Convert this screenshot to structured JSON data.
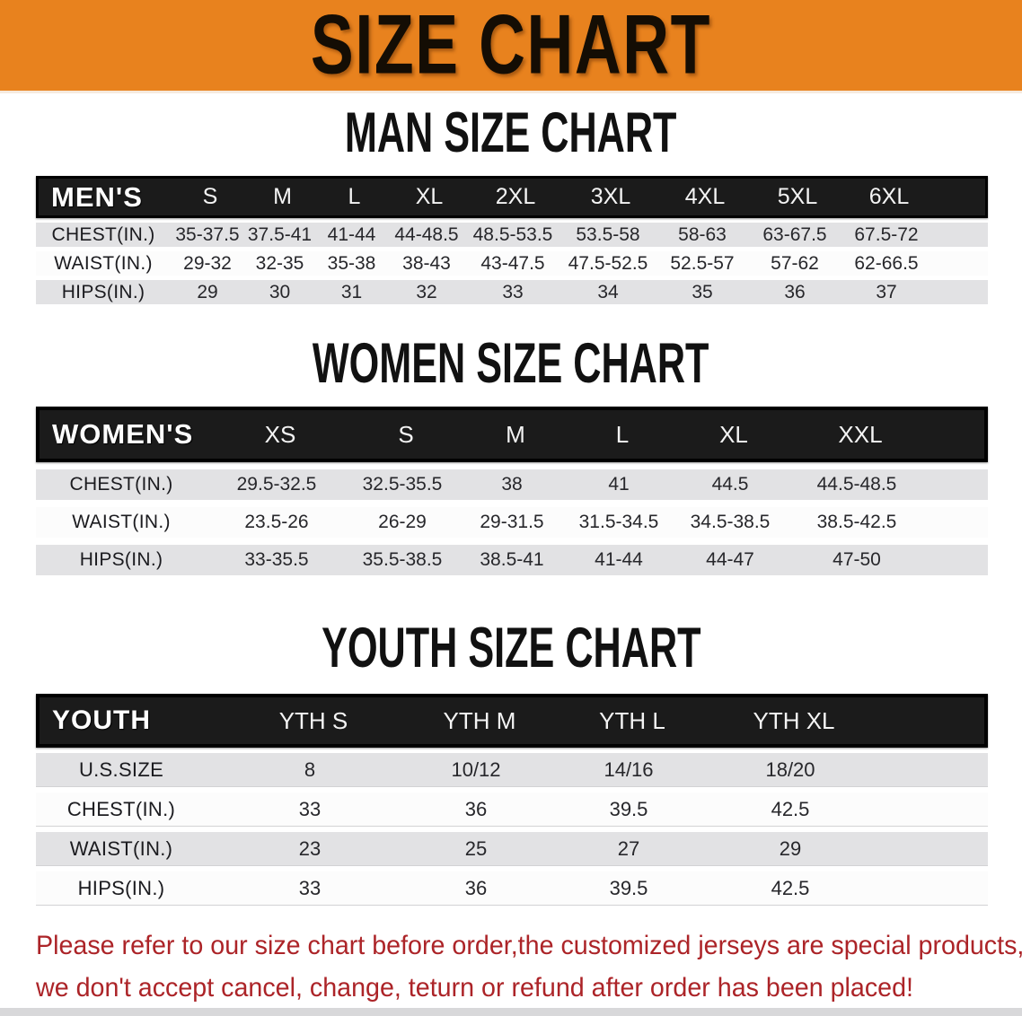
{
  "banner": {
    "title": "SIZE CHART",
    "bg_color": "#E8821E"
  },
  "theme": {
    "table_header_bg": "#1B1B1B",
    "row_shaded_color": "#E2E2E4",
    "row_plain_color": "#FCFCFC",
    "disclaimer_color": "#AC2428"
  },
  "tables": [
    {
      "title": "MAN SIZE CHART",
      "header_label": "MEN'S",
      "columns": [
        "S",
        "M",
        "L",
        "XL",
        "2XL",
        "3XL",
        "4XL",
        "5XL",
        "6XL"
      ],
      "rows": [
        {
          "label": "CHEST(IN.)",
          "values": [
            "35-37.5",
            "37.5-41",
            "41-44",
            "44-48.5",
            "48.5-53.5",
            "53.5-58",
            "58-63",
            "63-67.5",
            "67.5-72"
          ]
        },
        {
          "label": "WAIST(IN.)",
          "values": [
            "29-32",
            "32-35",
            "35-38",
            "38-43",
            "43-47.5",
            "47.5-52.5",
            "52.5-57",
            "57-62",
            "62-66.5"
          ]
        },
        {
          "label": "HIPS(IN.)",
          "values": [
            "29",
            "30",
            "31",
            "32",
            "33",
            "34",
            "35",
            "36",
            "37"
          ]
        }
      ]
    },
    {
      "title": "WOMEN SIZE CHART",
      "header_label": "WOMEN'S",
      "columns": [
        "XS",
        "S",
        "M",
        "L",
        "XL",
        "XXL"
      ],
      "rows": [
        {
          "label": "CHEST(IN.)",
          "values": [
            "29.5-32.5",
            "32.5-35.5",
            "38",
            "41",
            "44.5",
            "44.5-48.5"
          ]
        },
        {
          "label": "WAIST(IN.)",
          "values": [
            "23.5-26",
            "26-29",
            "29-31.5",
            "31.5-34.5",
            "34.5-38.5",
            "38.5-42.5"
          ]
        },
        {
          "label": "HIPS(IN.)",
          "values": [
            "33-35.5",
            "35.5-38.5",
            "38.5-41",
            "41-44",
            "44-47",
            "47-50"
          ]
        }
      ]
    },
    {
      "title": "YOUTH SIZE CHART",
      "header_label": "YOUTH",
      "columns": [
        "YTH S",
        "YTH M",
        "YTH L",
        "YTH XL"
      ],
      "rows": [
        {
          "label": "U.S.SIZE",
          "values": [
            "8",
            "10/12",
            "14/16",
            "18/20"
          ]
        },
        {
          "label": "CHEST(IN.)",
          "values": [
            "33",
            "36",
            "39.5",
            "42.5"
          ]
        },
        {
          "label": "WAIST(IN.)",
          "values": [
            "23",
            "25",
            "27",
            "29"
          ]
        },
        {
          "label": "HIPS(IN.)",
          "values": [
            "33",
            "36",
            "39.5",
            "42.5"
          ]
        }
      ]
    }
  ],
  "disclaimer": {
    "line1": "Please refer to our size chart before order,the customized jerseys are special products,",
    "line2": "we don't accept cancel, change, teturn or refund after order has been placed!"
  }
}
